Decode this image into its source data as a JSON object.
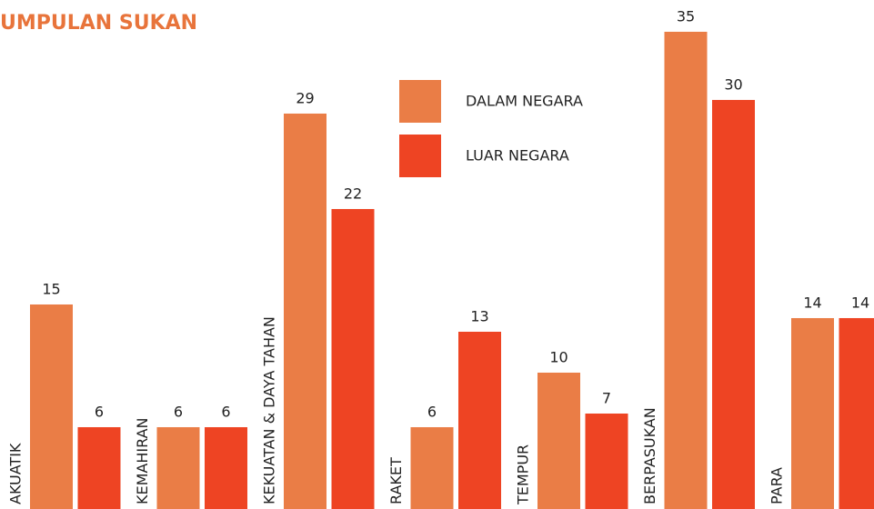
{
  "chart_data": {
    "type": "bar",
    "title": "UMPULAN SUKAN",
    "categories": [
      "AKUATIK",
      "KEMAHIRAN",
      "KEKUATAN & DAYA TAHAN",
      "RAKET",
      "TEMPUR",
      "BERPASUKAN",
      "PARA"
    ],
    "series": [
      {
        "name": "DALAM NEGARA",
        "color": "#ea7d46",
        "values": [
          15,
          6,
          29,
          6,
          10,
          35,
          14
        ]
      },
      {
        "name": "LUAR NEGARA",
        "color": "#ee4423",
        "values": [
          6,
          6,
          22,
          13,
          7,
          30,
          14
        ]
      }
    ],
    "ylim": [
      0,
      37.33
    ]
  }
}
